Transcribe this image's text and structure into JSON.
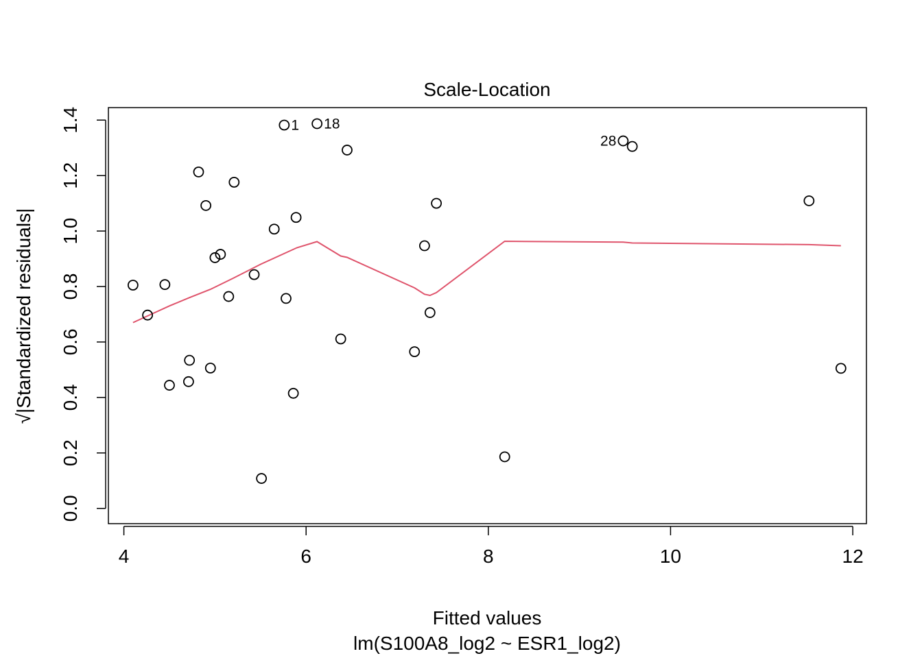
{
  "chart_data": {
    "type": "scatter",
    "title": "Scale-Location",
    "xlabel": "Fitted values",
    "subtitle": "lm(S100A8_log2 ~ ESR1_log2)",
    "ylabel": "√|Standardized residuals|",
    "xlim": [
      3.83,
      12.15
    ],
    "ylim": [
      -0.055,
      1.445
    ],
    "x_ticks": [
      4,
      6,
      8,
      10,
      12
    ],
    "y_ticks": [
      0.0,
      0.2,
      0.4,
      0.6,
      0.8,
      1.0,
      1.2,
      1.4
    ],
    "x_tick_labels": [
      "4",
      "6",
      "8",
      "10",
      "12"
    ],
    "y_tick_labels": [
      "0.0",
      "0.2",
      "0.4",
      "0.6",
      "0.8",
      "1.0",
      "1.2",
      "1.4"
    ],
    "grid": false,
    "points": [
      {
        "x": 4.1,
        "y": 0.805
      },
      {
        "x": 4.26,
        "y": 0.697
      },
      {
        "x": 4.45,
        "y": 0.807
      },
      {
        "x": 4.5,
        "y": 0.444
      },
      {
        "x": 4.71,
        "y": 0.457
      },
      {
        "x": 4.72,
        "y": 0.534
      },
      {
        "x": 4.82,
        "y": 1.213
      },
      {
        "x": 4.9,
        "y": 1.092
      },
      {
        "x": 4.95,
        "y": 0.506
      },
      {
        "x": 5.0,
        "y": 0.904
      },
      {
        "x": 5.06,
        "y": 0.916
      },
      {
        "x": 5.15,
        "y": 0.764
      },
      {
        "x": 5.21,
        "y": 1.176
      },
      {
        "x": 5.43,
        "y": 0.843
      },
      {
        "x": 5.51,
        "y": 0.108
      },
      {
        "x": 5.65,
        "y": 1.007
      },
      {
        "x": 5.76,
        "y": 1.382,
        "label": "1"
      },
      {
        "x": 5.78,
        "y": 0.757
      },
      {
        "x": 5.86,
        "y": 0.415
      },
      {
        "x": 5.89,
        "y": 1.049
      },
      {
        "x": 6.12,
        "y": 1.387,
        "label": "18"
      },
      {
        "x": 6.38,
        "y": 0.611
      },
      {
        "x": 6.45,
        "y": 1.292
      },
      {
        "x": 7.19,
        "y": 0.565
      },
      {
        "x": 7.3,
        "y": 0.947
      },
      {
        "x": 7.36,
        "y": 0.706
      },
      {
        "x": 7.43,
        "y": 1.1
      },
      {
        "x": 8.18,
        "y": 0.186
      },
      {
        "x": 9.48,
        "y": 1.325,
        "label": "28"
      },
      {
        "x": 9.58,
        "y": 1.305
      },
      {
        "x": 11.52,
        "y": 1.109
      },
      {
        "x": 11.87,
        "y": 0.505
      }
    ],
    "smooth_line": {
      "color": "#DF536B",
      "x": [
        4.1,
        4.3,
        4.5,
        4.72,
        4.95,
        5.2,
        5.5,
        5.9,
        6.12,
        6.38,
        6.45,
        7.19,
        7.3,
        7.36,
        7.43,
        8.18,
        9.48,
        9.58,
        11.52,
        11.87
      ],
      "y": [
        0.67,
        0.7,
        0.73,
        0.76,
        0.79,
        0.83,
        0.88,
        0.94,
        0.962,
        0.91,
        0.905,
        0.795,
        0.772,
        0.768,
        0.778,
        0.963,
        0.96,
        0.957,
        0.951,
        0.947
      ]
    },
    "point_color": "#000000"
  }
}
